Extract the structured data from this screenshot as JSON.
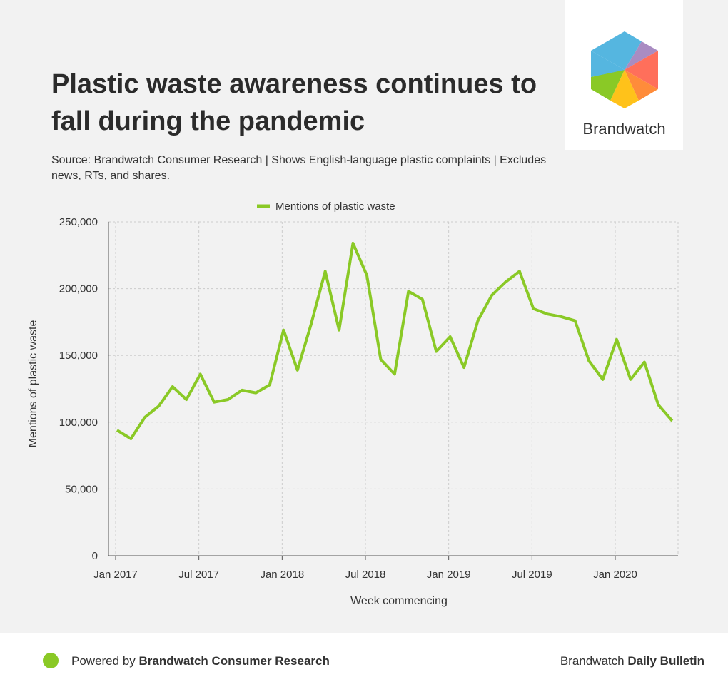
{
  "header": {
    "title": "Plastic waste awareness continues to fall during the pandemic",
    "source": "Source: Brandwatch Consumer Research | Shows English-language plastic complaints | Excludes news, RTs, and shares."
  },
  "logo": {
    "text": "Brandwatch"
  },
  "footer": {
    "powered_prefix": "Powered by ",
    "powered_brand": "Brandwatch Consumer Research",
    "right_prefix": "Brandwatch ",
    "right_brand": "Daily Bulletin"
  },
  "colors": {
    "line": "#8ac926",
    "grid": "#cccccc"
  },
  "chart_data": {
    "type": "line",
    "title": "Plastic waste awareness continues to fall during the pandemic",
    "xlabel": "Week commencing",
    "ylabel": "Mentions of plastic waste",
    "ylim": [
      0,
      250000
    ],
    "yticks": [
      0,
      50000,
      100000,
      150000,
      200000,
      250000
    ],
    "ytick_labels": [
      "0",
      "50,000",
      "100,000",
      "150,000",
      "200,000",
      "250,000"
    ],
    "xtick_labels": [
      "Jan 2017",
      "Jul 2017",
      "Jan 2018",
      "Jul 2018",
      "Jan 2019",
      "Jul 2019",
      "Jan 2020"
    ],
    "legend": "top-center",
    "grid": true,
    "series": [
      {
        "name": "Mentions of plastic waste",
        "values": [
          94000,
          87600,
          103600,
          112000,
          126600,
          117000,
          136000,
          115000,
          117000,
          124000,
          122000,
          128000,
          169000,
          139000,
          174000,
          213000,
          169000,
          234000,
          210000,
          147000,
          136000,
          198000,
          192000,
          153000,
          164000,
          141000,
          176000,
          195000,
          205000,
          213000,
          185000,
          181000,
          179000,
          176000,
          146000,
          132000,
          162000,
          132000,
          145000,
          113000,
          101000
        ]
      }
    ]
  }
}
